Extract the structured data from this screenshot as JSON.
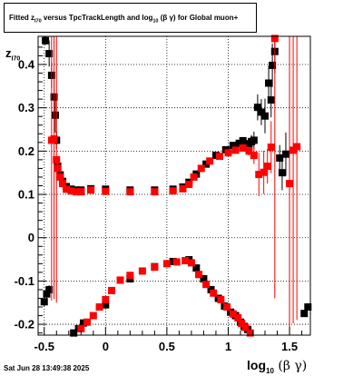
{
  "title_parts": {
    "fitted": "Fitted  z",
    "z_sub": "I70",
    "versus": "  versus TpcTrackLength and log",
    "log_sub": "10",
    "bg": " (β  γ) for Global muon+"
  },
  "ylabel": {
    "main": "z",
    "sub": "I70"
  },
  "xlabel": {
    "main": "log",
    "sub": "10",
    "bg": " (β γ)"
  },
  "timestamp": "Sat Jun 28 13:49:38 2025",
  "colors": {
    "black_series": "#000000",
    "red_series": "#ff0000",
    "grid": "#000000"
  },
  "chart_data": {
    "type": "scatter",
    "title": "Fitted z_I70 versus TpcTrackLength and log10(βγ) for Global muon+",
    "xlabel": "log10(βγ)",
    "ylabel": "zI70",
    "xlim": [
      -0.55,
      1.67
    ],
    "ylim": [
      -0.225,
      0.465
    ],
    "x_ticks": [
      -0.5,
      0,
      0.5,
      1,
      1.5
    ],
    "x_tick_labels": [
      "-0.5",
      "0",
      "0.5",
      "1",
      "1.5"
    ],
    "y_ticks": [
      -0.2,
      -0.1,
      0,
      0.1,
      0.2,
      0.3,
      0.4
    ],
    "y_tick_labels": [
      "-0.2",
      "-0.1",
      "0",
      "0.1",
      "0.2",
      "0.3",
      "0.4"
    ],
    "grid": true,
    "series": [
      {
        "color": "#000000",
        "points": [
          [
            -0.49,
            0.455,
            0.01
          ],
          [
            -0.46,
            0.425,
            0.03
          ],
          [
            -0.44,
            0.375,
            0.03
          ],
          [
            -0.42,
            0.325,
            0.04
          ],
          [
            -0.41,
            0.283,
            0.04
          ],
          [
            -0.4,
            0.225,
            0.02
          ],
          [
            -0.39,
            0.165,
            0.01
          ],
          [
            -0.37,
            0.145,
            0.005
          ],
          [
            -0.35,
            0.13,
            0.003
          ],
          [
            -0.32,
            0.118,
            0.002
          ],
          [
            -0.28,
            0.112,
            0.002
          ],
          [
            -0.24,
            0.11,
            0.002
          ],
          [
            -0.2,
            0.11,
            0.002
          ],
          [
            -0.12,
            0.113,
            0.002
          ],
          [
            0.0,
            0.112,
            0.002
          ],
          [
            0.2,
            0.11,
            0.002
          ],
          [
            0.4,
            0.11,
            0.002
          ],
          [
            0.55,
            0.112,
            0.002
          ],
          [
            0.63,
            0.117,
            0.002
          ],
          [
            0.68,
            0.128,
            0.002
          ],
          [
            0.74,
            0.147,
            0.002
          ],
          [
            0.82,
            0.17,
            0.002
          ],
          [
            0.9,
            0.19,
            0.002
          ],
          [
            0.98,
            0.203,
            0.002
          ],
          [
            1.04,
            0.213,
            0.003
          ],
          [
            1.09,
            0.218,
            0.004
          ],
          [
            1.12,
            0.224,
            0.005
          ],
          [
            1.17,
            0.217,
            0.01
          ],
          [
            1.19,
            0.222,
            0.015
          ],
          [
            1.21,
            0.225,
            0.02
          ],
          [
            1.24,
            0.301,
            0.03
          ],
          [
            1.27,
            0.29,
            0.03
          ],
          [
            1.3,
            0.281,
            0.04
          ],
          [
            1.33,
            0.357,
            0.04
          ],
          [
            1.35,
            0.318,
            0.04
          ],
          [
            1.36,
            0.398,
            0.05
          ],
          [
            1.38,
            0.43,
            0.05
          ],
          [
            1.42,
            0.184,
            0.03
          ],
          [
            1.44,
            0.15,
            0.04
          ],
          [
            1.47,
            0.193,
            0.05
          ],
          [
            -0.5,
            -0.148,
            0.01
          ],
          [
            -0.48,
            -0.13,
            0.01
          ],
          [
            -0.46,
            -0.12,
            0.01
          ],
          [
            -0.26,
            -0.22,
            0.005
          ],
          [
            -0.22,
            -0.21,
            0.004
          ],
          [
            -0.18,
            -0.197,
            0.003
          ],
          [
            0.0,
            -0.155,
            0.002
          ],
          [
            0.2,
            -0.095,
            0.002
          ],
          [
            0.4,
            -0.067,
            0.002
          ],
          [
            0.55,
            -0.055,
            0.002
          ],
          [
            0.68,
            -0.051,
            0.002
          ],
          [
            0.74,
            -0.07,
            0.002
          ],
          [
            0.8,
            -0.095,
            0.002
          ],
          [
            0.86,
            -0.12,
            0.002
          ],
          [
            0.92,
            -0.14,
            0.002
          ],
          [
            0.97,
            -0.158,
            0.002
          ],
          [
            1.02,
            -0.172,
            0.003
          ],
          [
            1.06,
            -0.18,
            0.003
          ],
          [
            1.1,
            -0.195,
            0.004
          ],
          [
            1.13,
            -0.205,
            0.005
          ],
          [
            1.16,
            -0.212,
            0.005
          ],
          [
            1.65,
            -0.16,
            0.005
          ],
          [
            1.62,
            -0.175,
            0.005
          ]
        ]
      },
      {
        "color": "#ff0000",
        "points": [
          [
            -0.44,
            0.225,
            0.37
          ],
          [
            -0.42,
            0.228,
            0.37
          ],
          [
            -0.4,
            0.18,
            0.33
          ],
          [
            -0.39,
            0.16,
            0.02
          ],
          [
            -0.37,
            0.14,
            0.01
          ],
          [
            -0.35,
            0.125,
            0.005
          ],
          [
            -0.32,
            0.112,
            0.003
          ],
          [
            -0.28,
            0.108,
            0.002
          ],
          [
            -0.24,
            0.106,
            0.002
          ],
          [
            -0.2,
            0.106,
            0.002
          ],
          [
            -0.12,
            0.11,
            0.002
          ],
          [
            0.0,
            0.107,
            0.002
          ],
          [
            0.2,
            0.106,
            0.002
          ],
          [
            0.4,
            0.106,
            0.002
          ],
          [
            0.55,
            0.108,
            0.002
          ],
          [
            0.63,
            0.113,
            0.002
          ],
          [
            0.68,
            0.123,
            0.002
          ],
          [
            0.72,
            0.14,
            0.002
          ],
          [
            0.78,
            0.16,
            0.002
          ],
          [
            0.85,
            0.177,
            0.002
          ],
          [
            0.93,
            0.188,
            0.002
          ],
          [
            1.0,
            0.196,
            0.002
          ],
          [
            1.06,
            0.202,
            0.003
          ],
          [
            1.12,
            0.207,
            0.004
          ],
          [
            1.17,
            0.2,
            0.01
          ],
          [
            1.21,
            0.19,
            0.02
          ],
          [
            1.25,
            0.146,
            0.05
          ],
          [
            1.29,
            0.151,
            0.05
          ],
          [
            1.32,
            0.165,
            0.04
          ],
          [
            1.35,
            0.209,
            0.06
          ],
          [
            1.38,
            0.46,
            0.6
          ],
          [
            1.5,
            0.125,
            0.4
          ],
          [
            1.53,
            0.202,
            0.4
          ],
          [
            1.56,
            0.21,
            0.4
          ],
          [
            -0.2,
            -0.21,
            0.005
          ],
          [
            -0.15,
            -0.195,
            0.004
          ],
          [
            -0.1,
            -0.18,
            0.003
          ],
          [
            -0.05,
            -0.16,
            0.003
          ],
          [
            0.0,
            -0.143,
            0.002
          ],
          [
            0.05,
            -0.122,
            0.002
          ],
          [
            0.12,
            -0.098,
            0.002
          ],
          [
            0.2,
            -0.087,
            0.002
          ],
          [
            0.3,
            -0.077,
            0.002
          ],
          [
            0.4,
            -0.068,
            0.002
          ],
          [
            0.5,
            -0.06,
            0.002
          ],
          [
            0.58,
            -0.056,
            0.002
          ],
          [
            0.65,
            -0.053,
            0.002
          ],
          [
            0.7,
            -0.058,
            0.002
          ],
          [
            0.76,
            -0.085,
            0.002
          ],
          [
            0.82,
            -0.108,
            0.002
          ],
          [
            0.88,
            -0.128,
            0.002
          ],
          [
            0.94,
            -0.143,
            0.002
          ],
          [
            0.99,
            -0.16,
            0.002
          ],
          [
            1.04,
            -0.176,
            0.003
          ],
          [
            1.08,
            -0.185,
            0.003
          ],
          [
            1.11,
            -0.198,
            0.004
          ],
          [
            1.14,
            -0.207,
            0.005
          ],
          [
            1.18,
            -0.22,
            0.005
          ]
        ]
      }
    ]
  }
}
